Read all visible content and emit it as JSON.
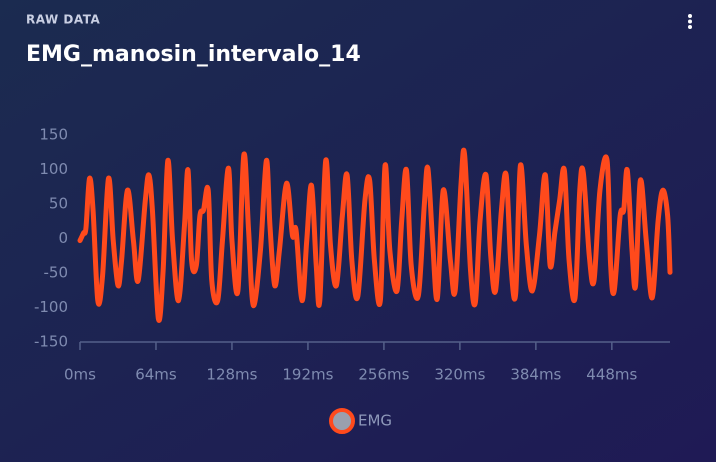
{
  "chart_data": {
    "type": "line",
    "subtitle": "RAW DATA",
    "title": "EMG_manosin_intervalo_14",
    "x": [
      0,
      3,
      5,
      8,
      11,
      15,
      19,
      24,
      28,
      32,
      35,
      40,
      45,
      49,
      55,
      58,
      61,
      66,
      70,
      74,
      78,
      83,
      88,
      91,
      94,
      98,
      101,
      104,
      108,
      111,
      116,
      120,
      125,
      128,
      133,
      138,
      142,
      146,
      152,
      157,
      160,
      164,
      168,
      174,
      179,
      182,
      187,
      191,
      195,
      199,
      202,
      207,
      211,
      216,
      221,
      225,
      229,
      234,
      240,
      244,
      248,
      253,
      257,
      261,
      267,
      271,
      275,
      279,
      285,
      290,
      293,
      297,
      301,
      306,
      312,
      316,
      321,
      324,
      329,
      333,
      337,
      342,
      346,
      350,
      355,
      359,
      363,
      367,
      371,
      376,
      381,
      387,
      392,
      396,
      400,
      404,
      408,
      412,
      417,
      421,
      424,
      429,
      433,
      438,
      444,
      447,
      450,
      455,
      458,
      461,
      465,
      468,
      472,
      477,
      482,
      487,
      491,
      495,
      497
    ],
    "series": [
      {
        "name": "EMG",
        "color": "#ff4a1c",
        "values": [
          -3,
          8,
          15,
          87,
          41,
          -90,
          -54,
          87,
          -3,
          -68,
          -32,
          70,
          -3,
          -61,
          55,
          92,
          41,
          -116,
          -47,
          113,
          -3,
          -90,
          19,
          99,
          -32,
          -39,
          33,
          41,
          70,
          -61,
          -90,
          -3,
          102,
          -3,
          -76,
          121,
          12,
          -97,
          -17,
          113,
          19,
          -68,
          -17,
          80,
          4,
          12,
          -90,
          -3,
          77,
          -39,
          -90,
          113,
          -10,
          -68,
          33,
          92,
          -32,
          -84,
          55,
          84,
          -32,
          -90,
          106,
          -17,
          -76,
          26,
          99,
          -39,
          -83,
          48,
          102,
          -3,
          -87,
          70,
          -32,
          -76,
          80,
          121,
          -47,
          -93,
          26,
          92,
          -25,
          -76,
          41,
          92,
          -39,
          -80,
          106,
          -10,
          -76,
          4,
          92,
          -39,
          9,
          55,
          99,
          -32,
          -86,
          70,
          95,
          -25,
          -61,
          70,
          113,
          -39,
          -76,
          33,
          41,
          99,
          -17,
          -68,
          84,
          -3,
          -86,
          26,
          70,
          33,
          -49
        ]
      }
    ],
    "xlim": [
      0,
      497
    ],
    "xticks": [
      {
        "value": 0,
        "label": "0ms"
      },
      {
        "value": 64,
        "label": "64ms"
      },
      {
        "value": 128,
        "label": "128ms"
      },
      {
        "value": 192,
        "label": "192ms"
      },
      {
        "value": 256,
        "label": "256ms"
      },
      {
        "value": 320,
        "label": "320ms"
      },
      {
        "value": 384,
        "label": "384ms"
      },
      {
        "value": 448,
        "label": "448ms"
      }
    ],
    "ylim": [
      -150,
      150
    ],
    "yticks": [
      -150,
      -100,
      -50,
      0,
      50,
      100,
      150
    ],
    "grid": false
  }
}
